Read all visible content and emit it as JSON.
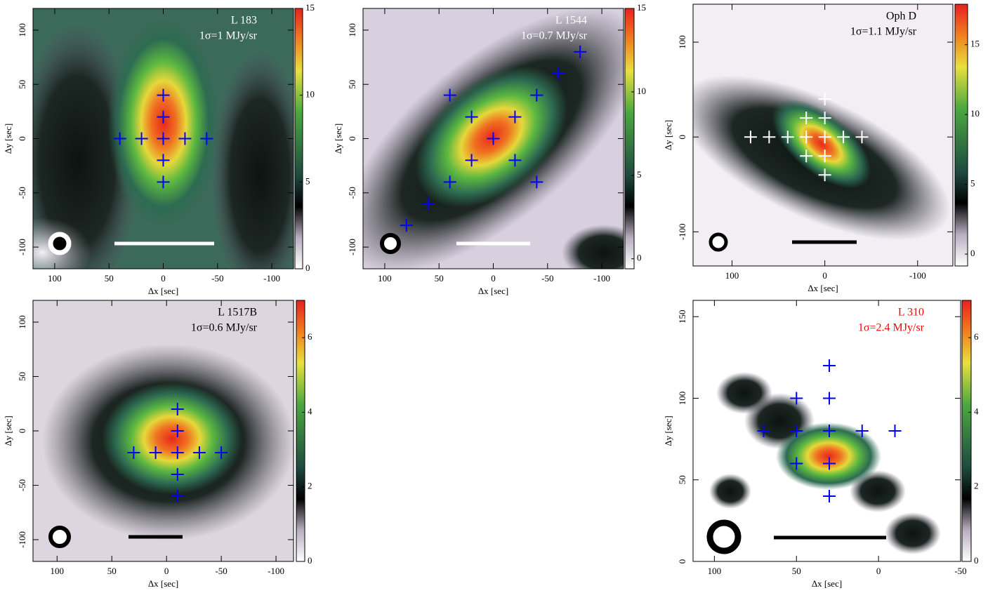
{
  "chart_data": [
    {
      "type": "scatter",
      "title": "L 183",
      "subtitle": "1σ=1 MJy/sr",
      "text_color": "#ffffff",
      "x_label": "Δx  [sec]",
      "y_label": "Δy  [sec]",
      "xlim": [
        120,
        -120
      ],
      "ylim": [
        -120,
        120
      ],
      "xticks": [
        100,
        50,
        0,
        -50,
        -100
      ],
      "yticks": [
        -100,
        -50,
        0,
        50,
        100
      ],
      "clim": [
        0,
        15
      ],
      "cticks": [
        0,
        5,
        10,
        15
      ],
      "marker_color": "#0000ff",
      "x": [
        0,
        0,
        0,
        0,
        0,
        40,
        20,
        -20,
        -40
      ],
      "values": [
        40,
        20,
        0,
        -20,
        -40,
        0,
        0,
        0,
        0
      ]
    },
    {
      "type": "scatter",
      "title": "L 1544",
      "subtitle": "1σ=0.7 MJy/sr",
      "text_color": "#ffffff",
      "x_label": "Δx  [sec]",
      "y_label": "Δy  [sec]",
      "xlim": [
        120,
        -120
      ],
      "ylim": [
        -120,
        120
      ],
      "xticks": [
        100,
        50,
        0,
        -50,
        -100
      ],
      "yticks": [
        -100,
        -50,
        0,
        50,
        100
      ],
      "clim": [
        -0.6,
        15
      ],
      "cticks": [
        0,
        5,
        10,
        15
      ],
      "marker_color": "#0000ff",
      "x": [
        0,
        20,
        -20,
        20,
        -20,
        40,
        -40,
        40,
        -40,
        -60,
        -80,
        60,
        80
      ],
      "values": [
        0,
        20,
        20,
        -20,
        -20,
        40,
        40,
        -40,
        -40,
        60,
        80,
        -60,
        -80
      ]
    },
    {
      "type": "scatter",
      "title": "Oph D",
      "subtitle": "1σ=1.1 MJy/sr",
      "text_color": "#000000",
      "x_label": "Δx  [sec]",
      "y_label": "Δy  [sec]",
      "xlim": [
        142,
        -138
      ],
      "ylim": [
        -136,
        140
      ],
      "xticks": [
        100,
        0,
        -100
      ],
      "yticks": [
        -100,
        0,
        100
      ],
      "clim": [
        -0.85,
        17.9
      ],
      "cticks": [
        0,
        5,
        10,
        15
      ],
      "marker_color": "#ffffff",
      "x": [
        80,
        60,
        40,
        20,
        0,
        -20,
        -40,
        20,
        0,
        0,
        20,
        0,
        0
      ],
      "values": [
        0,
        0,
        0,
        0,
        0,
        0,
        0,
        20,
        20,
        40,
        -20,
        -20,
        -40
      ]
    },
    {
      "type": "scatter",
      "title": "L 1517B",
      "subtitle": "1σ=0.6 MJy/sr",
      "text_color": "#000000",
      "x_label": "Δx  [sec]",
      "y_label": "Δy  [sec]",
      "xlim": [
        122,
        -116
      ],
      "ylim": [
        -120,
        120
      ],
      "xticks": [
        100,
        50,
        0,
        -50,
        -100
      ],
      "yticks": [
        -100,
        -50,
        0,
        50,
        100
      ],
      "clim": [
        0,
        7
      ],
      "cticks": [
        0,
        2,
        4,
        6
      ],
      "marker_color": "#0000ff",
      "x": [
        30,
        10,
        -10,
        -30,
        -50,
        -10,
        -10,
        -10,
        -10
      ],
      "values": [
        -20,
        -20,
        -20,
        -20,
        -20,
        20,
        0,
        -40,
        -60
      ]
    },
    {
      "type": "scatter",
      "title": "L 310",
      "subtitle": "1σ=2.4 MJy/sr",
      "text_color": "#ff0000",
      "x_label": "Δx  [sec]",
      "y_label": "Δy  [sec]",
      "xlim": [
        113,
        -50
      ],
      "ylim": [
        0,
        160
      ],
      "xticks": [
        100,
        50,
        0,
        -50
      ],
      "yticks": [
        0,
        50,
        100,
        150
      ],
      "clim": [
        0,
        7
      ],
      "cticks": [
        0,
        2,
        4,
        6
      ],
      "marker_color": "#0000ff",
      "x": [
        50,
        30,
        30,
        70,
        50,
        30,
        10,
        -10,
        50,
        30,
        30
      ],
      "values": [
        100,
        100,
        120,
        80,
        80,
        80,
        80,
        80,
        60,
        60,
        40
      ]
    }
  ]
}
